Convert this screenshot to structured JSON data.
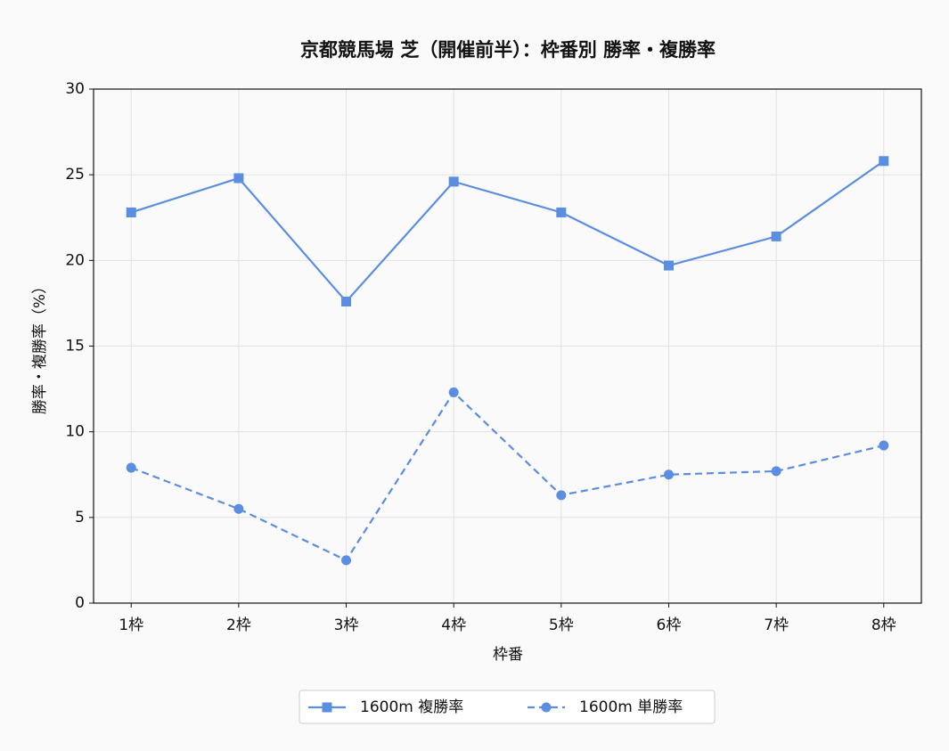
{
  "chart_data": {
    "type": "line",
    "title": "京都競馬場 芝（開催前半）：枠番別 勝率・複勝率",
    "x_label": "枠番",
    "y_label": "勝率・複勝率（%）",
    "categories": [
      "1枠",
      "2枠",
      "3枠",
      "4枠",
      "5枠",
      "6枠",
      "7枠",
      "8枠"
    ],
    "series": [
      {
        "name": "1600m 複勝率",
        "color": "#5b8de0",
        "marker": "square",
        "linestyle": "solid",
        "values": [
          22.8,
          24.8,
          17.6,
          24.6,
          22.8,
          19.7,
          21.4,
          25.8
        ]
      },
      {
        "name": "1600m 単勝率",
        "color": "#5b8de0",
        "marker": "circle",
        "linestyle": "dashed",
        "values": [
          7.9,
          5.5,
          2.5,
          12.3,
          6.3,
          7.5,
          7.7,
          9.2
        ]
      }
    ],
    "ylim": [
      0,
      30
    ],
    "yticks": [
      0,
      5,
      10,
      15,
      20,
      25,
      30
    ],
    "grid": true,
    "legend": "bottom"
  }
}
